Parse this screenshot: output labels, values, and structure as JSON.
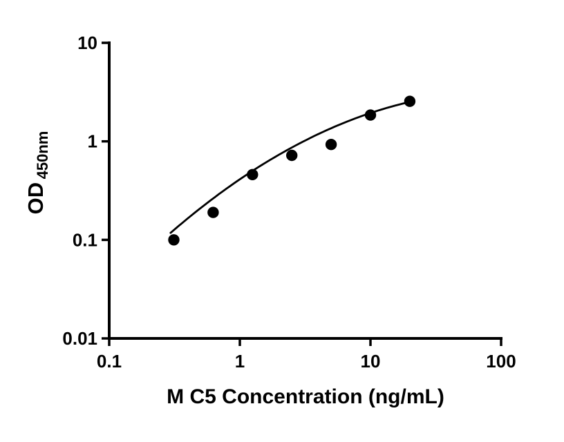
{
  "chart_data": {
    "type": "scatter",
    "title": "",
    "xlabel": "M C5 Concentration (ng/mL)",
    "ylabel_main": "OD",
    "ylabel_sub": "450nm",
    "x_scale": "log",
    "y_scale": "log",
    "xlim": [
      0.1,
      100
    ],
    "ylim": [
      0.01,
      10
    ],
    "x_ticks": [
      0.1,
      1,
      10,
      100
    ],
    "x_tick_labels": [
      "0.1",
      "1",
      "10",
      "100"
    ],
    "y_ticks": [
      0.01,
      0.1,
      1,
      10
    ],
    "y_tick_labels": [
      "0.01",
      "0.1",
      "1",
      "10"
    ],
    "grid": false,
    "legend": "none",
    "marker_color": "#000000",
    "axis_color": "#000000",
    "series": [
      {
        "x": [
          0.3125,
          0.625,
          1.25,
          2.5,
          5,
          10,
          20
        ],
        "y": [
          0.1,
          0.19,
          0.46,
          0.72,
          0.93,
          1.85,
          2.55
        ],
        "marker": "circle"
      }
    ],
    "trendline": {
      "model": "log10(y) = a + b*u + c*u^2 where u = log10(x)",
      "a": -0.3854,
      "b": 0.9028,
      "c": -0.23,
      "x_start": 0.295,
      "x_end": 20.5
    }
  }
}
